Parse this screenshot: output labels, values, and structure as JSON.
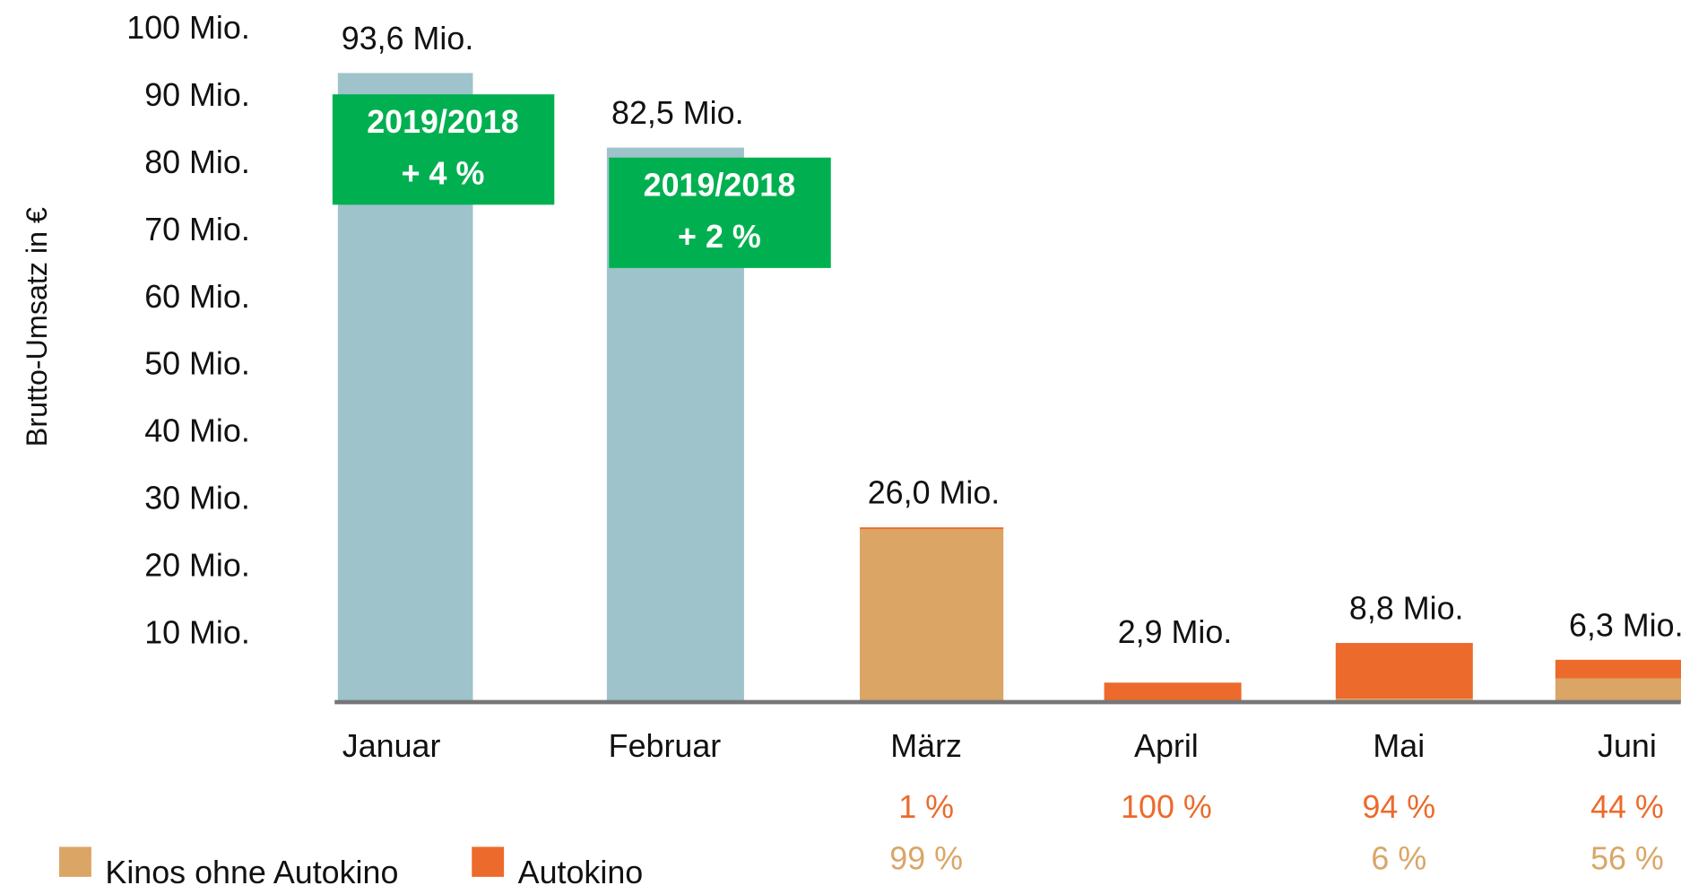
{
  "chart_data": {
    "type": "bar",
    "y_label": "Brutto-Umsatz in €",
    "categories": [
      "Januar",
      "Februar",
      "März",
      "April",
      "Mai",
      "Juni"
    ],
    "values": [
      93.6,
      82.5,
      26.0,
      2.9,
      8.8,
      6.3
    ],
    "value_labels": [
      "93,6 Mio.",
      "82,5 Mio.",
      "26,0 Mio.",
      "2,9 Mio.",
      "8,8 Mio.",
      "6,3 Mio."
    ],
    "color": "#9ec3cb",
    "series": [
      {
        "name": "Kinos ohne Autokino",
        "color": "#dba566",
        "values": [
          null,
          null,
          99,
          null,
          6,
          56
        ],
        "value_labels": [
          null,
          null,
          "99 %",
          null,
          "6 %",
          "56 %"
        ]
      },
      {
        "name": "Autokino",
        "color": "#ec6a2c",
        "values": [
          null,
          null,
          1,
          100,
          94,
          44
        ],
        "value_labels": [
          null,
          null,
          "1 %",
          "100 %",
          "94 %",
          "44 %"
        ]
      }
    ],
    "ylim": [
      0,
      100
    ],
    "yticks": [
      {
        "value": 10,
        "label": "10 Mio."
      },
      {
        "value": 20,
        "label": "20 Mio."
      },
      {
        "value": 30,
        "label": "30 Mio."
      },
      {
        "value": 40,
        "label": "40 Mio."
      },
      {
        "value": 50,
        "label": "50 Mio."
      },
      {
        "value": 60,
        "label": "60 Mio."
      },
      {
        "value": 70,
        "label": "70 Mio."
      },
      {
        "value": 80,
        "label": "80 Mio."
      },
      {
        "value": 90,
        "label": "90 Mio."
      },
      {
        "value": 100,
        "label": "100 Mio."
      }
    ],
    "annotations": [
      {
        "title": "2019/2018",
        "text": "+ 4 %"
      },
      {
        "title": "2019/2018",
        "text": "+ 2 %"
      }
    ],
    "legend": "bottom-left"
  }
}
